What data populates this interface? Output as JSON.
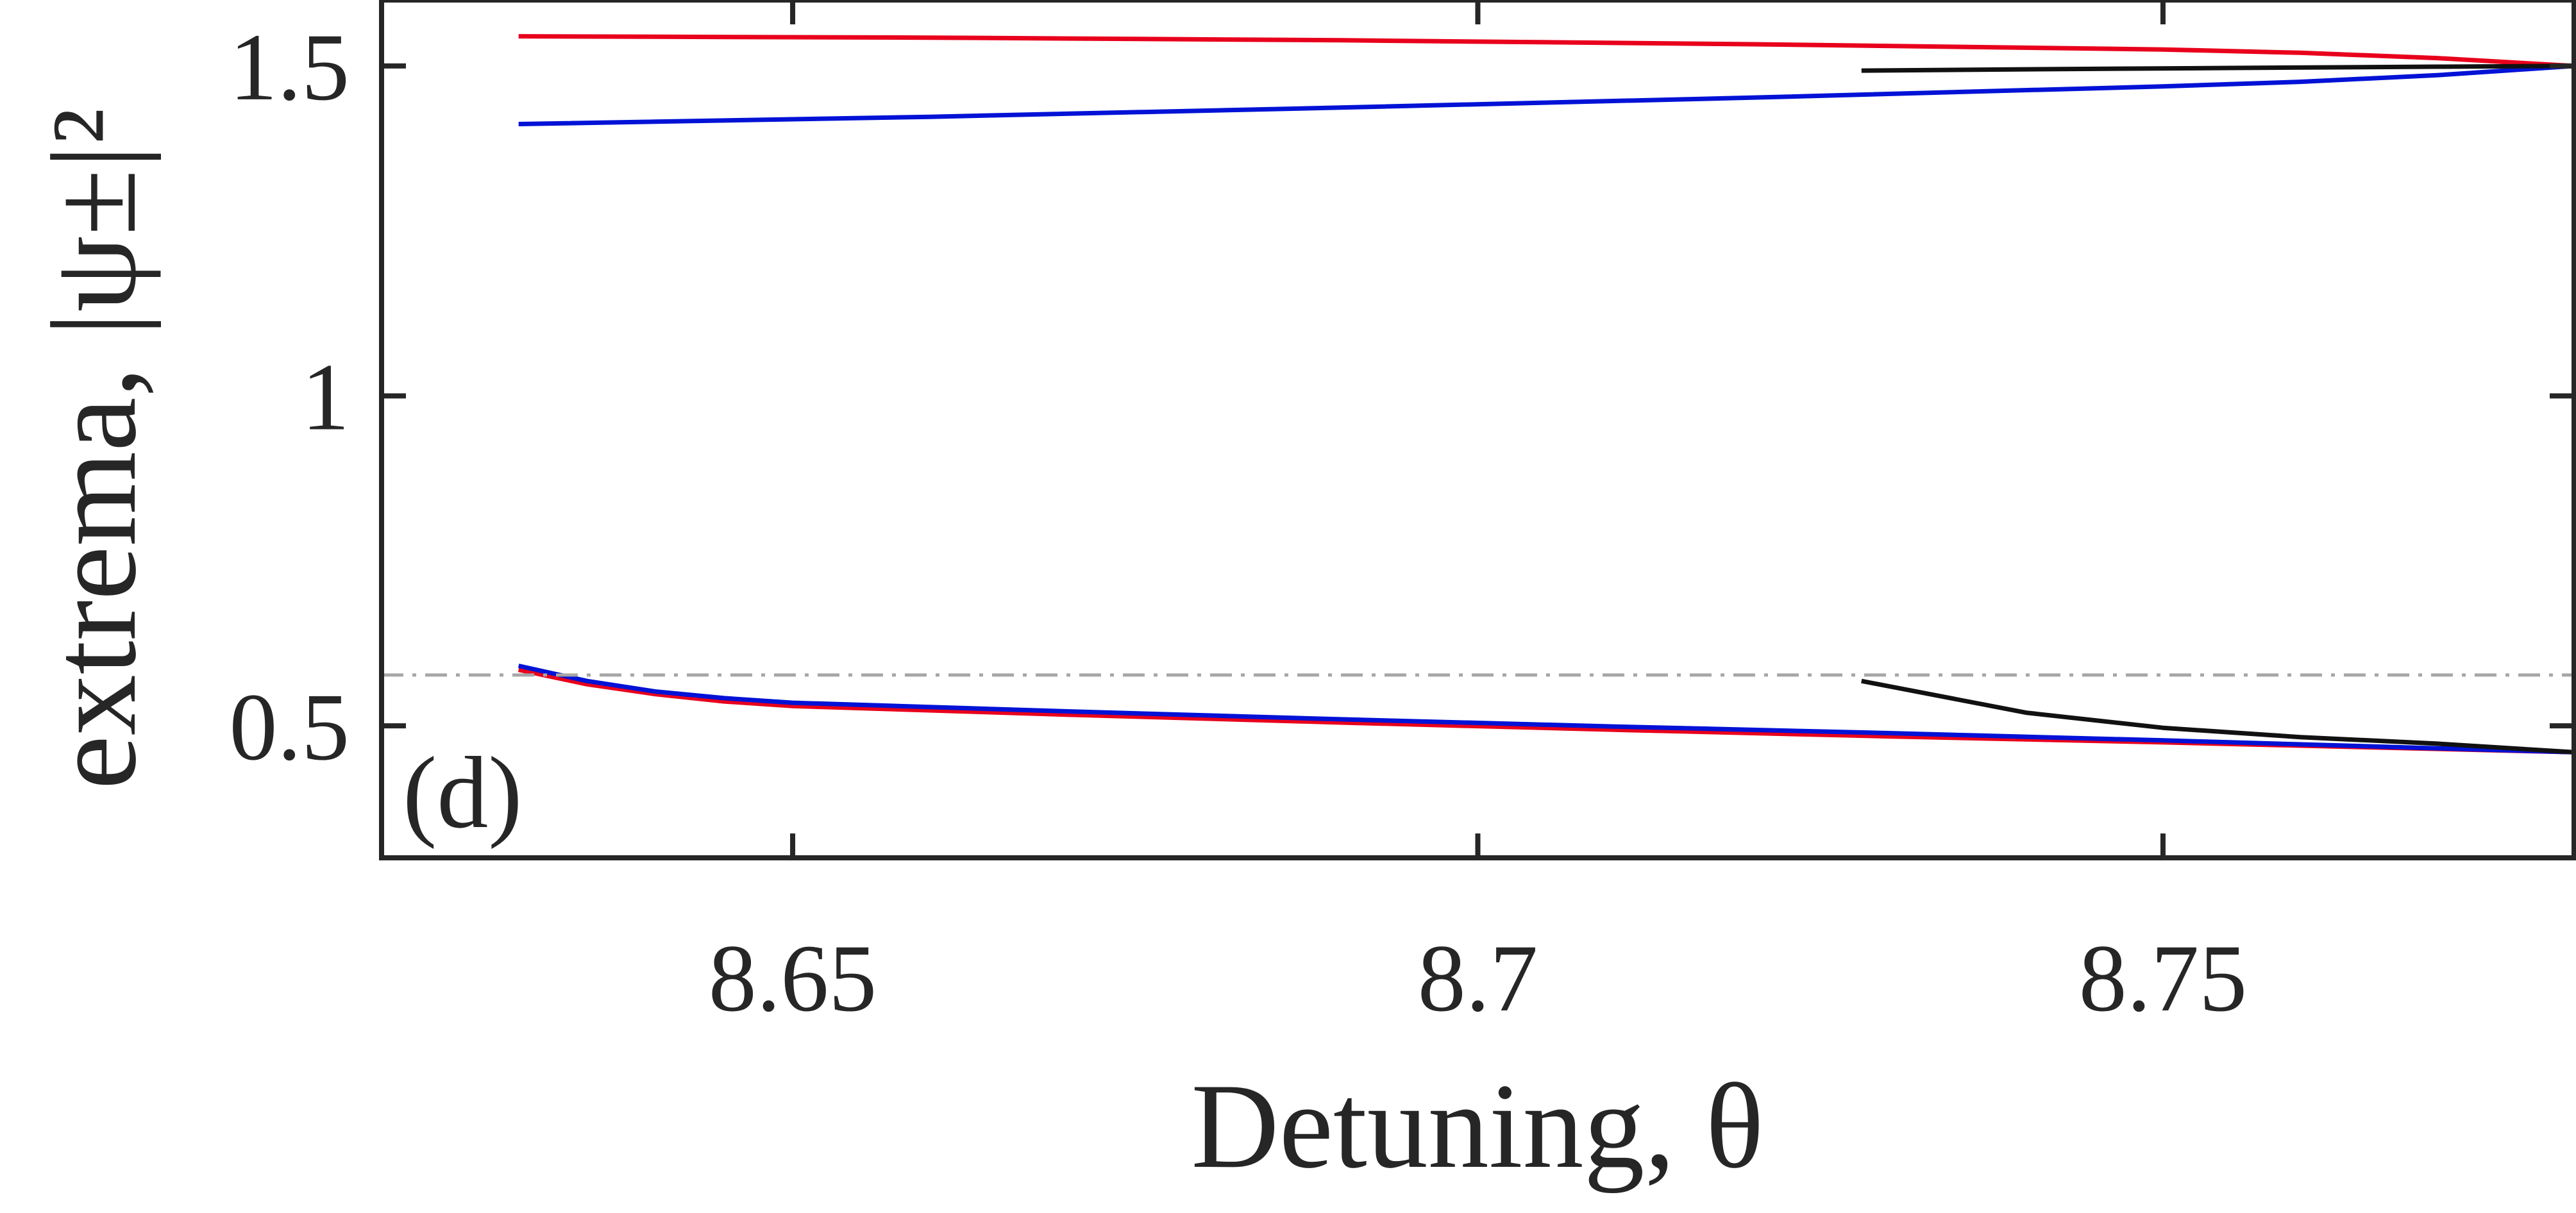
{
  "chart_data": {
    "type": "line",
    "title": "",
    "xlabel": "Detuning, θ",
    "ylabel": "extrema, |ψ±|²",
    "panel_label": "(d)",
    "xlim": [
      8.62,
      8.78
    ],
    "ylim": [
      0.3,
      1.6
    ],
    "xticks": [
      {
        "value": 8.65,
        "label": "8.65"
      },
      {
        "value": 8.7,
        "label": "8.7"
      },
      {
        "value": 8.75,
        "label": "8.75"
      }
    ],
    "yticks": [
      {
        "value": 0.5,
        "label": "0.5"
      },
      {
        "value": 1.0,
        "label": "1"
      },
      {
        "value": 1.5,
        "label": "1.5"
      }
    ],
    "grid": false,
    "legend": "none",
    "reference_lines": [
      {
        "orientation": "horizontal",
        "value": 0.577,
        "style": "dash-dot",
        "color": "#a6a6a6"
      }
    ],
    "series": [
      {
        "color": "#e8001c",
        "x": [
          8.63,
          8.66,
          8.69,
          8.72,
          8.75,
          8.76,
          8.77,
          8.78
        ],
        "y": [
          1.545,
          1.543,
          1.539,
          1.533,
          1.525,
          1.52,
          1.512,
          1.5
        ]
      },
      {
        "color": "#0012d6",
        "x": [
          8.63,
          8.66,
          8.69,
          8.72,
          8.75,
          8.76,
          8.77,
          8.78
        ],
        "y": [
          1.412,
          1.423,
          1.437,
          1.452,
          1.469,
          1.476,
          1.486,
          1.5
        ]
      },
      {
        "color": "#111111",
        "x": [
          8.728,
          8.74,
          8.755,
          8.77,
          8.78
        ],
        "y": [
          1.493,
          1.495,
          1.497,
          1.499,
          1.5
        ]
      },
      {
        "color": "#e8001c",
        "x": [
          8.63,
          8.635,
          8.64,
          8.645,
          8.65,
          8.67,
          8.69,
          8.71,
          8.73,
          8.75,
          8.78
        ],
        "y": [
          0.585,
          0.563,
          0.548,
          0.537,
          0.53,
          0.517,
          0.505,
          0.494,
          0.484,
          0.475,
          0.46
        ]
      },
      {
        "color": "#0012d6",
        "x": [
          8.63,
          8.635,
          8.64,
          8.645,
          8.65,
          8.67,
          8.69,
          8.71,
          8.73,
          8.75,
          8.78
        ],
        "y": [
          0.591,
          0.568,
          0.552,
          0.542,
          0.535,
          0.522,
          0.51,
          0.499,
          0.489,
          0.478,
          0.46
        ]
      },
      {
        "color": "#111111",
        "x": [
          8.728,
          8.735,
          8.74,
          8.75,
          8.76,
          8.77,
          8.78
        ],
        "y": [
          0.568,
          0.54,
          0.52,
          0.497,
          0.483,
          0.473,
          0.46
        ]
      }
    ]
  }
}
